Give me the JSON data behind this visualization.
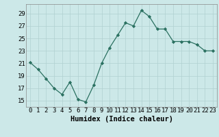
{
  "x": [
    0,
    1,
    2,
    3,
    4,
    5,
    6,
    7,
    8,
    9,
    10,
    11,
    12,
    13,
    14,
    15,
    16,
    17,
    18,
    19,
    20,
    21,
    22,
    23
  ],
  "y": [
    21.1,
    20.0,
    18.5,
    17.0,
    16.0,
    18.0,
    15.2,
    14.8,
    17.5,
    21.0,
    23.5,
    25.5,
    27.5,
    27.0,
    29.5,
    28.5,
    26.5,
    26.5,
    24.5,
    24.5,
    24.5,
    24.0,
    23.0,
    23.0
  ],
  "xlabel": "Humidex (Indice chaleur)",
  "ylim": [
    14.0,
    30.5
  ],
  "xlim": [
    -0.5,
    23.5
  ],
  "yticks": [
    15,
    17,
    19,
    21,
    23,
    25,
    27,
    29
  ],
  "xticks": [
    0,
    1,
    2,
    3,
    4,
    5,
    6,
    7,
    8,
    9,
    10,
    11,
    12,
    13,
    14,
    15,
    16,
    17,
    18,
    19,
    20,
    21,
    22,
    23
  ],
  "line_color": "#2a7060",
  "marker": "D",
  "marker_size": 2.2,
  "bg_color": "#cce8e8",
  "grid_color": "#b0d0d0",
  "xlabel_fontsize": 7.5,
  "tick_fontsize": 6.5
}
